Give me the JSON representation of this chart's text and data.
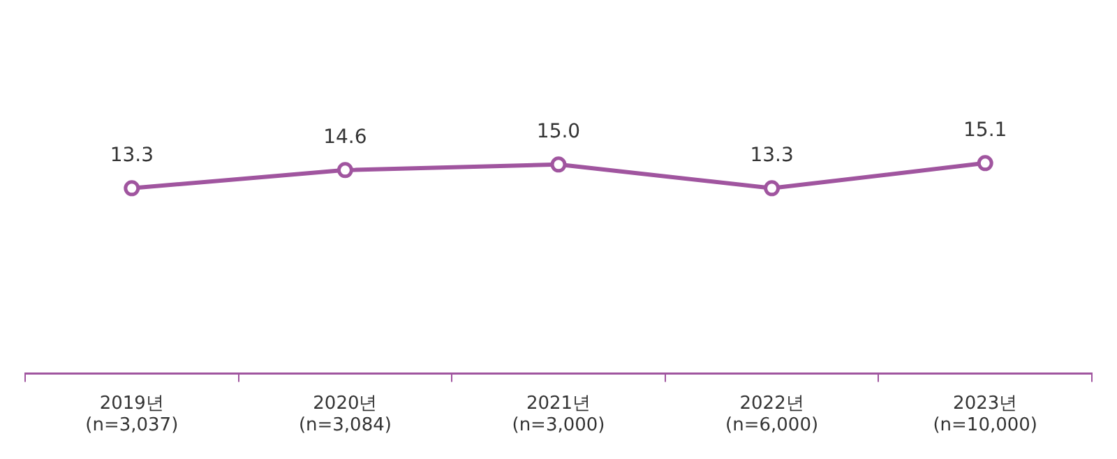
{
  "chart_data": {
    "type": "line",
    "categories": [
      "2019년\n(n=3,037)",
      "2020년\n(n=3,084)",
      "2021년\n(n=3,000)",
      "2022년\n(n=6,000)",
      "2023년\n(n=10,000)"
    ],
    "series": [
      {
        "color": "#a0559f",
        "values": [
          13.3,
          14.6,
          15.0,
          13.3,
          15.1
        ],
        "value_labels": [
          "13.3",
          "14.6",
          "15.0",
          "13.3",
          "15.1"
        ]
      }
    ],
    "marker": "circle",
    "line_style": "solid",
    "grid": false,
    "legend": false,
    "tick_labels": "x"
  }
}
